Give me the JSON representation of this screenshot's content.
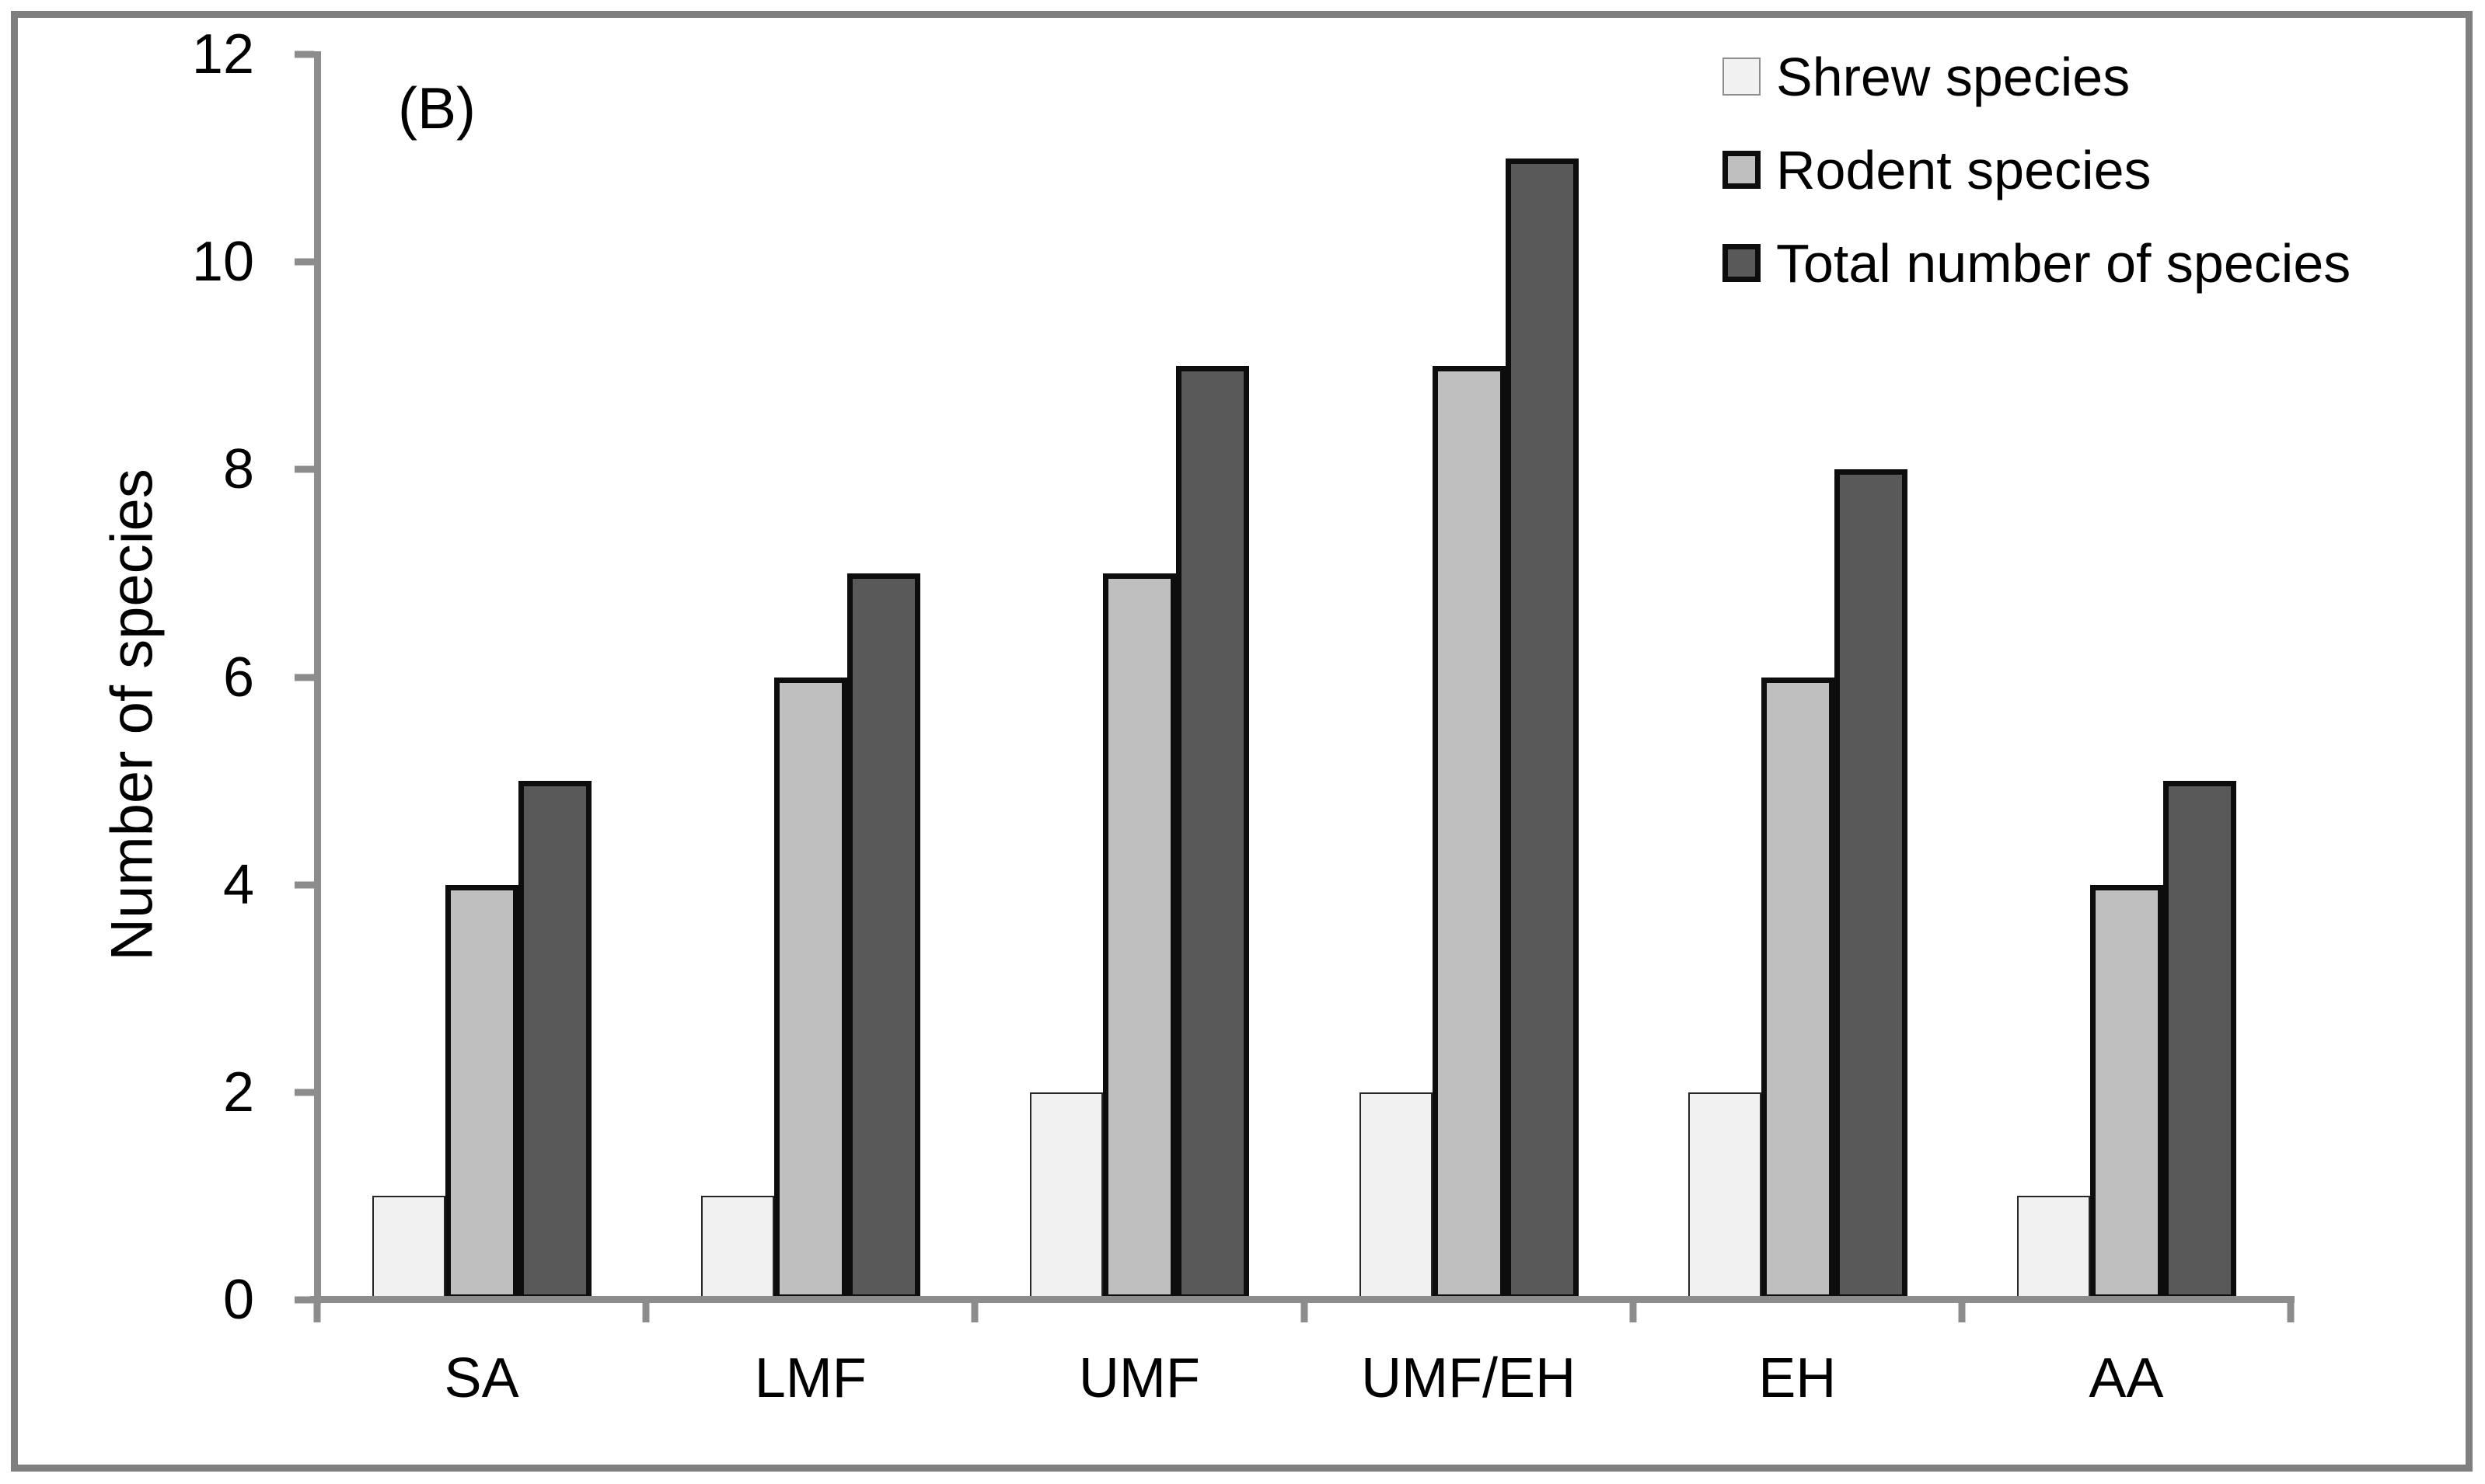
{
  "panel_label": "(B)",
  "chart_data": {
    "type": "bar",
    "title": "(B)",
    "categories": [
      "SA",
      "LMF",
      "UMF",
      "UMF/EH",
      "EH",
      "AA"
    ],
    "series": [
      {
        "name": "Shrew species",
        "fill": "#f1f1f1",
        "border": "#262626",
        "values": [
          1,
          1,
          2,
          2,
          2,
          1
        ]
      },
      {
        "name": "Rodent species",
        "fill": "#bfbfbf",
        "border": "#0d0d0d",
        "values": [
          4,
          6,
          7,
          9,
          6,
          4
        ]
      },
      {
        "name": "Total number of species",
        "fill": "#595959",
        "border": "#0d0d0d",
        "values": [
          5,
          7,
          9,
          11,
          8,
          5
        ]
      }
    ],
    "xlabel": "",
    "ylabel": "Number of species",
    "ylim": [
      0,
      12
    ],
    "yticks": [
      0,
      2,
      4,
      6,
      8,
      10,
      12
    ],
    "grid": false,
    "legend_position": "top-right",
    "axis_color": "#8c8c8c",
    "figure_border_color": "#7f7f7f",
    "text_color": "#000000"
  }
}
